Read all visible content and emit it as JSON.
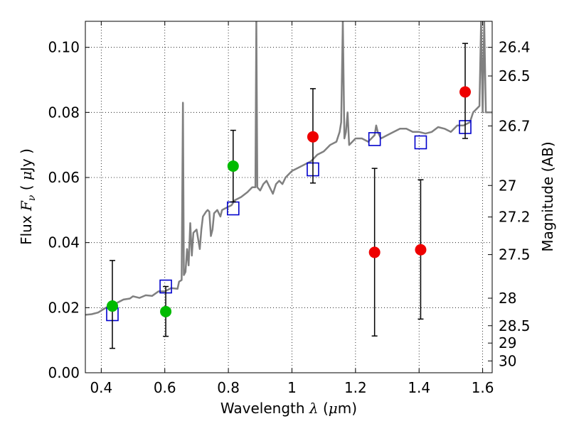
{
  "chart_data": {
    "type": "scatter",
    "title": "",
    "xlabel": {
      "prefix": "Wavelength",
      "symbol": "λ",
      "open": "(",
      "unit_mu": "μ",
      "unit_rest": "m",
      "close": ")"
    },
    "ylabel": {
      "prefix": "Flux",
      "symbol": "F",
      "subscript": "ν",
      "open": "(",
      "unit_mu": "μ",
      "unit_rest": "Jy",
      "close": ")"
    },
    "y2label": "Magnitude (AB)",
    "xlim": [
      0.35,
      1.63
    ],
    "ylim": [
      0.0,
      0.108
    ],
    "grid": true,
    "x_ticks": [
      "0.4",
      "0.6",
      "0.8",
      "1",
      "1.2",
      "1.4",
      "1.6"
    ],
    "x_tick_values": [
      0.4,
      0.6,
      0.8,
      1.0,
      1.2,
      1.4,
      1.6
    ],
    "y_ticks": [
      "0.00",
      "0.02",
      "0.04",
      "0.06",
      "0.08",
      "0.10"
    ],
    "y_tick_values": [
      0.0,
      0.02,
      0.04,
      0.06,
      0.08,
      0.1
    ],
    "magnitude_ticks": [
      "26.4",
      "26.5",
      "26.7",
      "27",
      "27.2",
      "27.5",
      "28",
      "28.5",
      "29",
      "30"
    ],
    "magnitude_tick_values": [
      26.4,
      26.5,
      26.7,
      27.0,
      27.2,
      27.5,
      28.0,
      28.5,
      29.0,
      30.0
    ],
    "colors": {
      "spectrum": "#808080",
      "model_box": "#0000cc",
      "detection": "#00bb00",
      "nondetection": "#ee0000",
      "errorbar": "#000000"
    },
    "series": [
      {
        "kind": "line",
        "points": [
          [
            0.35,
            0.0178
          ],
          [
            0.37,
            0.018
          ],
          [
            0.39,
            0.0185
          ],
          [
            0.41,
            0.0197
          ],
          [
            0.42,
            0.0203
          ],
          [
            0.43,
            0.02
          ],
          [
            0.44,
            0.021
          ],
          [
            0.45,
            0.0215
          ],
          [
            0.47,
            0.0225
          ],
          [
            0.49,
            0.0228
          ],
          [
            0.5,
            0.0235
          ],
          [
            0.52,
            0.023
          ],
          [
            0.54,
            0.0238
          ],
          [
            0.56,
            0.0236
          ],
          [
            0.58,
            0.025
          ],
          [
            0.6,
            0.025
          ],
          [
            0.62,
            0.026
          ],
          [
            0.64,
            0.0258
          ],
          [
            0.645,
            0.028
          ],
          [
            0.653,
            0.0285
          ],
          [
            0.657,
            0.083
          ],
          [
            0.66,
            0.03
          ],
          [
            0.665,
            0.031
          ],
          [
            0.67,
            0.038
          ],
          [
            0.675,
            0.033
          ],
          [
            0.68,
            0.046
          ],
          [
            0.685,
            0.036
          ],
          [
            0.69,
            0.043
          ],
          [
            0.7,
            0.044
          ],
          [
            0.71,
            0.038
          ],
          [
            0.715,
            0.044
          ],
          [
            0.72,
            0.048
          ],
          [
            0.73,
            0.0495
          ],
          [
            0.735,
            0.05
          ],
          [
            0.74,
            0.0495
          ],
          [
            0.745,
            0.042
          ],
          [
            0.75,
            0.044
          ],
          [
            0.755,
            0.049
          ],
          [
            0.765,
            0.05
          ],
          [
            0.77,
            0.049
          ],
          [
            0.775,
            0.048
          ],
          [
            0.78,
            0.05
          ],
          [
            0.79,
            0.0505
          ],
          [
            0.8,
            0.051
          ],
          [
            0.81,
            0.0515
          ],
          [
            0.82,
            0.053
          ],
          [
            0.84,
            0.054
          ],
          [
            0.86,
            0.0555
          ],
          [
            0.875,
            0.057
          ],
          [
            0.885,
            0.057
          ],
          [
            0.888,
            0.108
          ],
          [
            0.891,
            0.057
          ],
          [
            0.9,
            0.056
          ],
          [
            0.91,
            0.058
          ],
          [
            0.92,
            0.059
          ],
          [
            0.93,
            0.057
          ],
          [
            0.94,
            0.055
          ],
          [
            0.95,
            0.058
          ],
          [
            0.96,
            0.059
          ],
          [
            0.97,
            0.058
          ],
          [
            0.98,
            0.06
          ],
          [
            0.99,
            0.061
          ],
          [
            1.0,
            0.062
          ],
          [
            1.02,
            0.063
          ],
          [
            1.04,
            0.064
          ],
          [
            1.06,
            0.065
          ],
          [
            1.08,
            0.067
          ],
          [
            1.1,
            0.068
          ],
          [
            1.12,
            0.07
          ],
          [
            1.14,
            0.071
          ],
          [
            1.15,
            0.074
          ],
          [
            1.155,
            0.077
          ],
          [
            1.16,
            0.108
          ],
          [
            1.165,
            0.072
          ],
          [
            1.17,
            0.074
          ],
          [
            1.175,
            0.08
          ],
          [
            1.18,
            0.07
          ],
          [
            1.19,
            0.071
          ],
          [
            1.2,
            0.072
          ],
          [
            1.22,
            0.072
          ],
          [
            1.24,
            0.071
          ],
          [
            1.25,
            0.072
          ],
          [
            1.26,
            0.073
          ],
          [
            1.265,
            0.076
          ],
          [
            1.27,
            0.074
          ],
          [
            1.28,
            0.072
          ],
          [
            1.3,
            0.073
          ],
          [
            1.32,
            0.074
          ],
          [
            1.34,
            0.075
          ],
          [
            1.36,
            0.075
          ],
          [
            1.38,
            0.074
          ],
          [
            1.4,
            0.074
          ],
          [
            1.42,
            0.0735
          ],
          [
            1.44,
            0.074
          ],
          [
            1.46,
            0.0755
          ],
          [
            1.48,
            0.075
          ],
          [
            1.5,
            0.074
          ],
          [
            1.52,
            0.076
          ],
          [
            1.54,
            0.076
          ],
          [
            1.56,
            0.077
          ],
          [
            1.57,
            0.08
          ],
          [
            1.58,
            0.081
          ],
          [
            1.59,
            0.082
          ],
          [
            1.595,
            0.108
          ],
          [
            1.6,
            0.08
          ],
          [
            1.605,
            0.108
          ],
          [
            1.61,
            0.08
          ],
          [
            1.63,
            0.08
          ]
        ]
      },
      {
        "kind": "model_boxes",
        "points": [
          [
            0.435,
            0.018
          ],
          [
            0.603,
            0.0265
          ],
          [
            0.815,
            0.0505
          ],
          [
            1.066,
            0.0625
          ],
          [
            1.26,
            0.0718
          ],
          [
            1.405,
            0.0708
          ],
          [
            1.545,
            0.0755
          ]
        ]
      },
      {
        "kind": "detections",
        "points": [
          {
            "x": 0.435,
            "y": 0.0205,
            "yerr": [
              0.0075,
              0.0345
            ]
          },
          {
            "x": 0.603,
            "y": 0.0188,
            "yerr": [
              0.0112,
              0.0265
            ]
          },
          {
            "x": 0.815,
            "y": 0.0635,
            "yerr": [
              0.0525,
              0.0745
            ]
          }
        ]
      },
      {
        "kind": "nondetections",
        "points": [
          {
            "x": 1.066,
            "y": 0.0725,
            "yerr": [
              0.0583,
              0.0873
            ]
          },
          {
            "x": 1.26,
            "y": 0.037,
            "yerr": [
              0.0113,
              0.0628
            ]
          },
          {
            "x": 1.405,
            "y": 0.0378,
            "yerr": [
              0.0165,
              0.0593
            ]
          },
          {
            "x": 1.545,
            "y": 0.0863,
            "yerr": [
              0.072,
              0.1012
            ]
          }
        ]
      }
    ]
  }
}
